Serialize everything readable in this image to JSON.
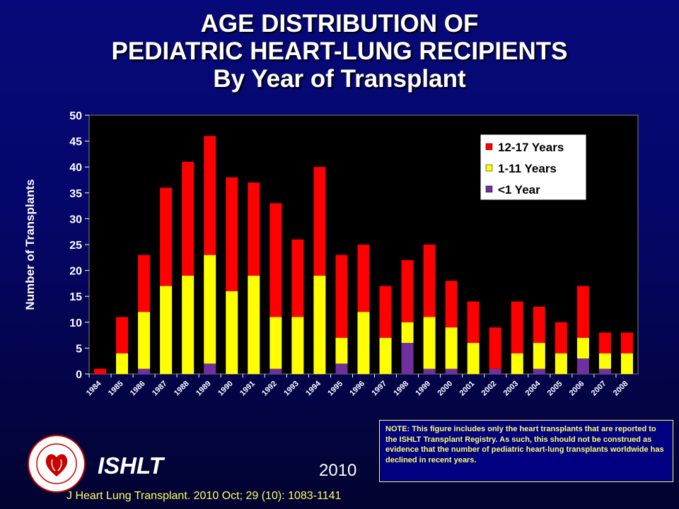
{
  "title": {
    "line1": "AGE DISTRIBUTION OF",
    "line2": "PEDIATRIC HEART-LUNG RECIPIENTS",
    "line3": "By Year of Transplant"
  },
  "footer": {
    "organization": "ISHLT",
    "year": "2010",
    "citation": "J Heart Lung Transplant. 2010 Oct; 29 (10): 1083-1141",
    "note": "NOTE: This figure includes only the heart transplants that are reported to the ISHLT Transplant Registry.  As such, this should not be construed as evidence that the number of pediatric heart-lung transplants worldwide has declined in recent years.",
    "logo_text": "INTERNATIONAL SOCIETY FOR HEART & LUNG TRANSPLANTATION"
  },
  "colors": {
    "under1": "#7030a0",
    "age1to11": "#ffff00",
    "age12to17": "#ff0000",
    "plot_bg": "#000000",
    "title": "#ffffff",
    "note": "#ffff66"
  },
  "chart_data": {
    "type": "bar",
    "stacked": true,
    "title": "AGE DISTRIBUTION OF PEDIATRIC HEART-LUNG RECIPIENTS By Year of Transplant",
    "xlabel": "",
    "ylabel": "Number of Transplants",
    "ylim": [
      0,
      50
    ],
    "yticks": [
      0,
      5,
      10,
      15,
      20,
      25,
      30,
      35,
      40,
      45,
      50
    ],
    "grid": false,
    "legend_position": "top-right",
    "categories": [
      "1984",
      "1985",
      "1986",
      "1987",
      "1988",
      "1989",
      "1990",
      "1991",
      "1992",
      "1993",
      "1994",
      "1995",
      "1996",
      "1997",
      "1998",
      "1999",
      "2000",
      "2001",
      "2002",
      "2003",
      "2004",
      "2005",
      "2006",
      "2007",
      "2008"
    ],
    "series": [
      {
        "name": "<1 Year",
        "color": "#7030a0",
        "values": [
          0,
          0,
          1,
          0,
          0,
          2,
          0,
          0,
          1,
          0,
          0,
          2,
          0,
          0,
          6,
          1,
          1,
          0,
          1,
          0,
          1,
          0,
          3,
          1,
          0
        ]
      },
      {
        "name": "1-11 Years",
        "color": "#ffff00",
        "values": [
          0,
          4,
          11,
          17,
          19,
          21,
          16,
          19,
          10,
          11,
          19,
          5,
          12,
          7,
          4,
          10,
          8,
          6,
          0,
          4,
          5,
          4,
          4,
          3,
          4
        ]
      },
      {
        "name": "12-17 Years",
        "color": "#ff0000",
        "values": [
          1,
          7,
          11,
          19,
          22,
          23,
          22,
          18,
          22,
          15,
          21,
          16,
          13,
          10,
          12,
          14,
          9,
          8,
          8,
          10,
          7,
          6,
          10,
          4,
          4
        ]
      }
    ],
    "legend_order": [
      "12-17 Years",
      "1-11 Years",
      "<1 Year"
    ]
  }
}
